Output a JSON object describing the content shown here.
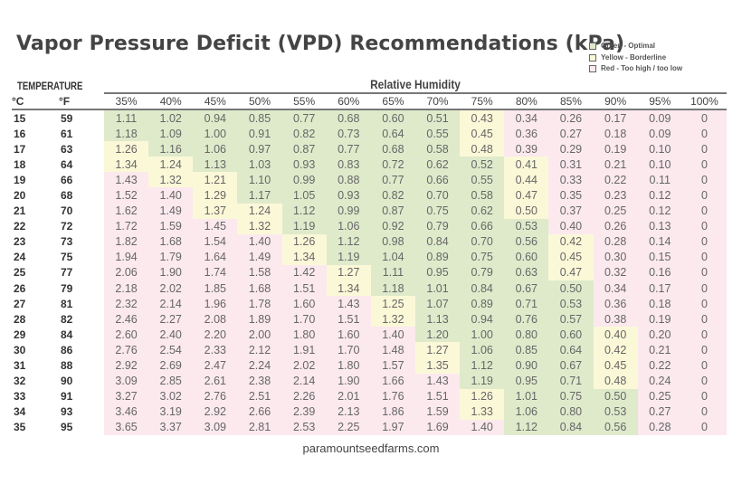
{
  "title": "Vapor Pressure Deficit (VPD) Recommendations (kPa)",
  "legend": [
    {
      "label": "Green - Optimal",
      "status": "G"
    },
    {
      "label": "Yellow - Borderline",
      "status": "Y"
    },
    {
      "label": "Red - Too high / too low",
      "status": "R"
    }
  ],
  "colors": {
    "G": "#dfeacb",
    "Y": "#fbf8d8",
    "R": "#fbe9ee"
  },
  "temperature_label": "TEMPERATURE",
  "rh_label": "Relative Humidity",
  "units": {
    "c": "°C",
    "f": "°F"
  },
  "humidity_columns": [
    "35%",
    "40%",
    "45%",
    "50%",
    "55%",
    "60%",
    "65%",
    "70%",
    "75%",
    "80%",
    "85%",
    "90%",
    "95%",
    "100%"
  ],
  "rows": [
    {
      "c": "15",
      "f": "59",
      "values": [
        "1.11",
        "1.02",
        "0.94",
        "0.85",
        "0.77",
        "0.68",
        "0.60",
        "0.51",
        "0.43",
        "0.34",
        "0.26",
        "0.17",
        "0.09",
        "0"
      ],
      "status": "GGGGGGGGYRRRRR"
    },
    {
      "c": "16",
      "f": "61",
      "values": [
        "1.18",
        "1.09",
        "1.00",
        "0.91",
        "0.82",
        "0.73",
        "0.64",
        "0.55",
        "0.45",
        "0.36",
        "0.27",
        "0.18",
        "0.09",
        "0"
      ],
      "status": "GGGGGGGGYRRRRR"
    },
    {
      "c": "17",
      "f": "63",
      "values": [
        "1.26",
        "1.16",
        "1.06",
        "0.97",
        "0.87",
        "0.77",
        "0.68",
        "0.58",
        "0.48",
        "0.39",
        "0.29",
        "0.19",
        "0.10",
        "0"
      ],
      "status": "YGGGGGGGYRRRRR"
    },
    {
      "c": "18",
      "f": "64",
      "values": [
        "1.34",
        "1.24",
        "1.13",
        "1.03",
        "0.93",
        "0.83",
        "0.72",
        "0.62",
        "0.52",
        "0.41",
        "0.31",
        "0.21",
        "0.10",
        "0"
      ],
      "status": "YYGGGGGGGYRRRR"
    },
    {
      "c": "19",
      "f": "66",
      "values": [
        "1.43",
        "1.32",
        "1.21",
        "1.10",
        "0.99",
        "0.88",
        "0.77",
        "0.66",
        "0.55",
        "0.44",
        "0.33",
        "0.22",
        "0.11",
        "0"
      ],
      "status": "RYYGGGGGGYRRRR"
    },
    {
      "c": "20",
      "f": "68",
      "values": [
        "1.52",
        "1.40",
        "1.29",
        "1.17",
        "1.05",
        "0.93",
        "0.82",
        "0.70",
        "0.58",
        "0.47",
        "0.35",
        "0.23",
        "0.12",
        "0"
      ],
      "status": "RRYGGGGGGYRRRR"
    },
    {
      "c": "21",
      "f": "70",
      "values": [
        "1.62",
        "1.49",
        "1.37",
        "1.24",
        "1.12",
        "0.99",
        "0.87",
        "0.75",
        "0.62",
        "0.50",
        "0.37",
        "0.25",
        "0.12",
        "0"
      ],
      "status": "RRYYGGGGGYRRRR"
    },
    {
      "c": "22",
      "f": "72",
      "values": [
        "1.72",
        "1.59",
        "1.45",
        "1.32",
        "1.19",
        "1.06",
        "0.92",
        "0.79",
        "0.66",
        "0.53",
        "0.40",
        "0.26",
        "0.13",
        "0"
      ],
      "status": "RRRYGGGGGGRRRR"
    },
    {
      "c": "23",
      "f": "73",
      "values": [
        "1.82",
        "1.68",
        "1.54",
        "1.40",
        "1.26",
        "1.12",
        "0.98",
        "0.84",
        "0.70",
        "0.56",
        "0.42",
        "0.28",
        "0.14",
        "0"
      ],
      "status": "RRRRYGGGGGYRRR"
    },
    {
      "c": "24",
      "f": "75",
      "values": [
        "1.94",
        "1.79",
        "1.64",
        "1.49",
        "1.34",
        "1.19",
        "1.04",
        "0.89",
        "0.75",
        "0.60",
        "0.45",
        "0.30",
        "0.15",
        "0"
      ],
      "status": "RRRRYGGGGGYRRR"
    },
    {
      "c": "25",
      "f": "77",
      "values": [
        "2.06",
        "1.90",
        "1.74",
        "1.58",
        "1.42",
        "1.27",
        "1.11",
        "0.95",
        "0.79",
        "0.63",
        "0.47",
        "0.32",
        "0.16",
        "0"
      ],
      "status": "RRRRRYGGGGYRRR"
    },
    {
      "c": "26",
      "f": "79",
      "values": [
        "2.18",
        "2.02",
        "1.85",
        "1.68",
        "1.51",
        "1.34",
        "1.18",
        "1.01",
        "0.84",
        "0.67",
        "0.50",
        "0.34",
        "0.17",
        "0"
      ],
      "status": "RRRRRYGGGGGRRR"
    },
    {
      "c": "27",
      "f": "81",
      "values": [
        "2.32",
        "2.14",
        "1.96",
        "1.78",
        "1.60",
        "1.43",
        "1.25",
        "1.07",
        "0.89",
        "0.71",
        "0.53",
        "0.36",
        "0.18",
        "0"
      ],
      "status": "RRRRRRYGGGGRRR"
    },
    {
      "c": "28",
      "f": "82",
      "values": [
        "2.46",
        "2.27",
        "2.08",
        "1.89",
        "1.70",
        "1.51",
        "1.32",
        "1.13",
        "0.94",
        "0.76",
        "0.57",
        "0.38",
        "0.19",
        "0"
      ],
      "status": "RRRRRRYGGGGRRR"
    },
    {
      "c": "29",
      "f": "84",
      "values": [
        "2.60",
        "2.40",
        "2.20",
        "2.00",
        "1.80",
        "1.60",
        "1.40",
        "1.20",
        "1.00",
        "0.80",
        "0.60",
        "0.40",
        "0.20",
        "0"
      ],
      "status": "RRRRRRRGGGGYRR"
    },
    {
      "c": "30",
      "f": "86",
      "values": [
        "2.76",
        "2.54",
        "2.33",
        "2.12",
        "1.91",
        "1.70",
        "1.48",
        "1.27",
        "1.06",
        "0.85",
        "0.64",
        "0.42",
        "0.21",
        "0"
      ],
      "status": "RRRRRRRYGGGYRR"
    },
    {
      "c": "31",
      "f": "88",
      "values": [
        "2.92",
        "2.69",
        "2.47",
        "2.24",
        "2.02",
        "1.80",
        "1.57",
        "1.35",
        "1.12",
        "0.90",
        "0.67",
        "0.45",
        "0.22",
        "0"
      ],
      "status": "RRRRRRRYGGGYRR"
    },
    {
      "c": "32",
      "f": "90",
      "values": [
        "3.09",
        "2.85",
        "2.61",
        "2.38",
        "2.14",
        "1.90",
        "1.66",
        "1.43",
        "1.19",
        "0.95",
        "0.71",
        "0.48",
        "0.24",
        "0"
      ],
      "status": "RRRRRRRRGGGYRR"
    },
    {
      "c": "33",
      "f": "91",
      "values": [
        "3.27",
        "3.02",
        "2.76",
        "2.51",
        "2.26",
        "2.01",
        "1.76",
        "1.51",
        "1.26",
        "1.01",
        "0.75",
        "0.50",
        "0.25",
        "0"
      ],
      "status": "RRRRRRRRYGGGRR"
    },
    {
      "c": "34",
      "f": "93",
      "values": [
        "3.46",
        "3.19",
        "2.92",
        "2.66",
        "2.39",
        "2.13",
        "1.86",
        "1.59",
        "1.33",
        "1.06",
        "0.80",
        "0.53",
        "0.27",
        "0"
      ],
      "status": "RRRRRRRRYGGGRR"
    },
    {
      "c": "35",
      "f": "95",
      "values": [
        "3.65",
        "3.37",
        "3.09",
        "2.81",
        "2.53",
        "2.25",
        "1.97",
        "1.69",
        "1.40",
        "1.12",
        "0.84",
        "0.56",
        "0.28",
        "0"
      ],
      "status": "RRRRRRRRRGGGRR"
    }
  ],
  "footer": "paramountseedfarms.com"
}
